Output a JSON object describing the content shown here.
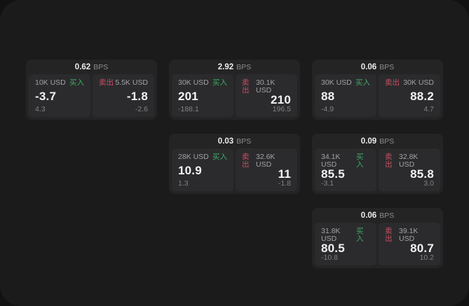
{
  "labels": {
    "bps_unit": "BPS",
    "buy": "买入",
    "sell": "卖出"
  },
  "colors": {
    "backdrop": "#121213",
    "surface": "#1b1b1c",
    "card": "#242425",
    "panel": "#2b2b2d",
    "buy_green": "#3dab63",
    "sell_red": "#ca4e63",
    "value_white": "#f3f3f4",
    "muted_gray": "#828286"
  },
  "cards": [
    {
      "bps": "0.62",
      "row": 1,
      "col": 1,
      "buy": {
        "amount": "10K USD",
        "value": "-3.7",
        "sub": "4.3"
      },
      "sell": {
        "amount": "5.5K USD",
        "value": "-1.8",
        "sub": "-2.6"
      }
    },
    {
      "bps": "2.92",
      "row": 1,
      "col": 2,
      "buy": {
        "amount": "30K USD",
        "value": "201",
        "sub": "-188.1"
      },
      "sell": {
        "amount": "30.1K USD",
        "value": "210",
        "sub": "196.5"
      }
    },
    {
      "bps": "0.06",
      "row": 1,
      "col": 3,
      "buy": {
        "amount": "30K USD",
        "value": "88",
        "sub": "-4.9"
      },
      "sell": {
        "amount": "30K USD",
        "value": "88.2",
        "sub": "4.7"
      }
    },
    {
      "bps": "0.03",
      "row": 2,
      "col": 2,
      "buy": {
        "amount": "28K USD",
        "value": "10.9",
        "sub": "1.3"
      },
      "sell": {
        "amount": "32.6K USD",
        "value": "11",
        "sub": "-1.8"
      }
    },
    {
      "bps": "0.09",
      "row": 2,
      "col": 3,
      "buy": {
        "amount": "34.1K USD",
        "value": "85.5",
        "sub": "-3.1"
      },
      "sell": {
        "amount": "32.8K USD",
        "value": "85.8",
        "sub": "3.0"
      }
    },
    {
      "bps": "0.06",
      "row": 3,
      "col": 3,
      "buy": {
        "amount": "31.8K USD",
        "value": "80.5",
        "sub": "-10.8"
      },
      "sell": {
        "amount": "39.1K USD",
        "value": "80.7",
        "sub": "10.2"
      }
    }
  ]
}
